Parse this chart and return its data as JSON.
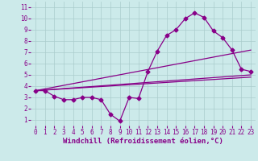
{
  "xlabel": "Windchill (Refroidissement éolien,°C)",
  "bg_color": "#cceaea",
  "grid_color": "#aacccc",
  "line_color": "#880088",
  "axis_color": "#880088",
  "xlim": [
    -0.5,
    23.5
  ],
  "ylim": [
    0.5,
    11.5
  ],
  "xticks": [
    0,
    1,
    2,
    3,
    4,
    5,
    6,
    7,
    8,
    9,
    10,
    11,
    12,
    13,
    14,
    15,
    16,
    17,
    18,
    19,
    20,
    21,
    22,
    23
  ],
  "yticks": [
    1,
    2,
    3,
    4,
    5,
    6,
    7,
    8,
    9,
    10,
    11
  ],
  "line1_x": [
    0,
    1,
    2,
    3,
    4,
    5,
    6,
    7,
    8,
    9,
    10,
    11,
    12,
    13,
    14,
    15,
    16,
    17,
    18,
    19,
    20,
    21,
    22,
    23
  ],
  "line1_y": [
    3.6,
    3.6,
    3.1,
    2.8,
    2.8,
    3.0,
    3.0,
    2.8,
    1.5,
    0.9,
    3.0,
    2.9,
    5.3,
    7.1,
    8.5,
    9.0,
    10.0,
    10.5,
    10.1,
    8.9,
    8.3,
    7.2,
    5.5,
    5.3
  ],
  "line2_x": [
    0,
    23
  ],
  "line2_y": [
    3.6,
    4.8
  ],
  "line3_x": [
    0,
    23
  ],
  "line3_y": [
    3.6,
    7.2
  ],
  "line4_x": [
    0,
    23
  ],
  "line4_y": [
    3.6,
    5.0
  ],
  "marker": "D",
  "markersize": 2.5,
  "linewidth": 0.9,
  "tick_fontsize": 5.5,
  "label_fontsize": 6.5
}
